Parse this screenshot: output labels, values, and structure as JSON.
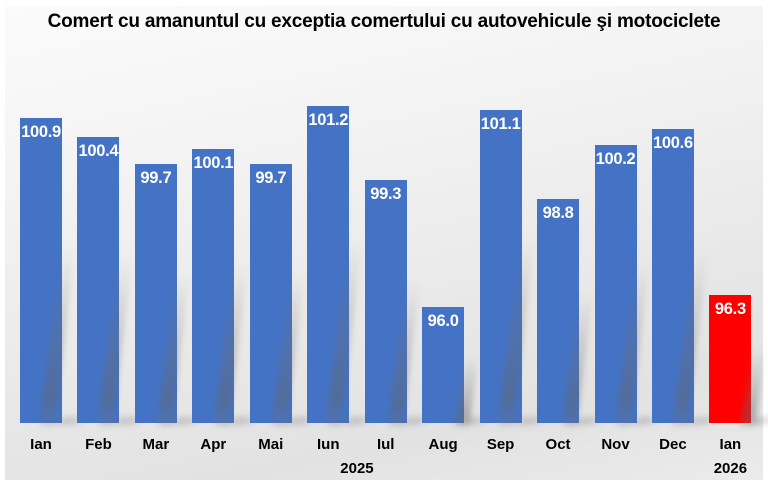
{
  "chart_data": {
    "type": "bar",
    "title": "Comert cu amanuntul cu exceptia comertului cu autovehicule şi motociclete",
    "categories": [
      "Ian",
      "Feb",
      "Mar",
      "Apr",
      "Mai",
      "Iun",
      "Iul",
      "Aug",
      "Sep",
      "Oct",
      "Nov",
      "Dec",
      "Ian"
    ],
    "values": [
      100.9,
      100.4,
      99.7,
      100.1,
      99.7,
      101.2,
      99.3,
      96.0,
      101.1,
      98.8,
      100.2,
      100.6,
      96.3
    ],
    "value_decimals": 1,
    "year_groups": [
      {
        "label": "2025",
        "start_index": 0,
        "end_index": 11
      },
      {
        "label": "2026",
        "start_index": 12,
        "end_index": 12
      }
    ],
    "bar_color": "#4472C4",
    "highlight_index": 12,
    "highlight_color": "#FF0000",
    "data_label_color": "#FFFFFF",
    "axis_text_color": "#000000",
    "ylim": [
      93,
      102
    ],
    "grid": false,
    "legend": false,
    "xlabel": "",
    "ylabel": ""
  }
}
